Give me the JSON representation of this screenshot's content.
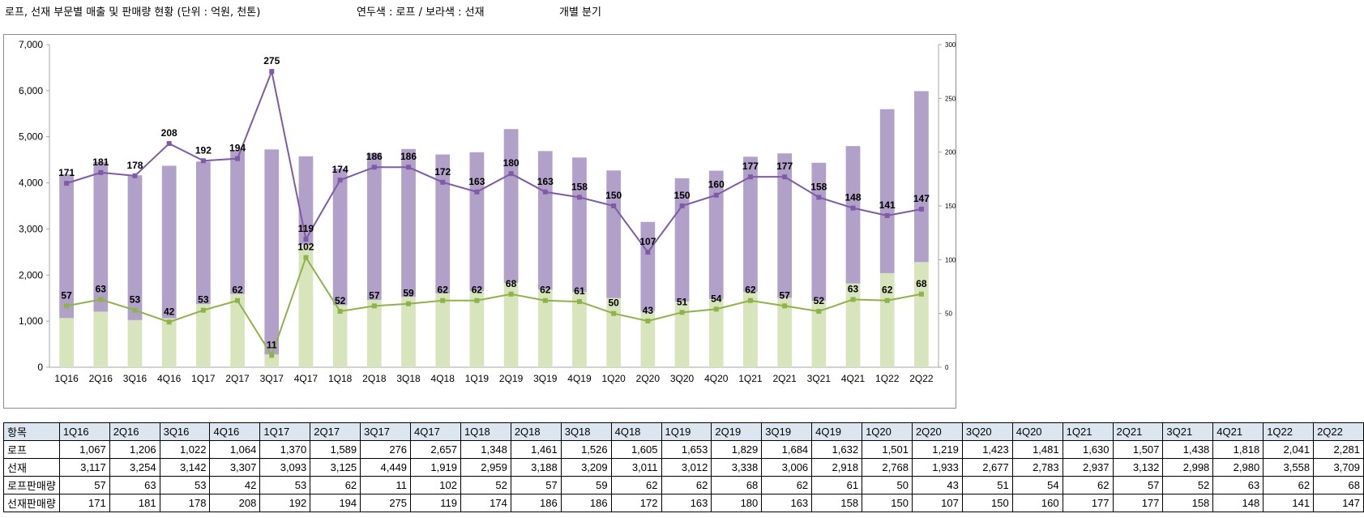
{
  "header": {
    "title": "로프, 선재 부문별 매출 및 판매량 현황 (단위 : 억원, 천톤)",
    "legend_note": "연두색 : 로프 / 보라색 : 선재",
    "period_note": "개별 분기"
  },
  "colors": {
    "rope_bar": "#d8e4bc",
    "wire_bar": "#b1a0c7",
    "rope_line": "#8db34a",
    "wire_line": "#7f5aa6"
  },
  "chart_data": {
    "type": "bar",
    "stacked": true,
    "categories": [
      "1Q16",
      "2Q16",
      "3Q16",
      "4Q16",
      "1Q17",
      "2Q17",
      "3Q17",
      "4Q17",
      "1Q18",
      "2Q18",
      "3Q18",
      "4Q18",
      "1Q19",
      "2Q19",
      "3Q19",
      "4Q19",
      "1Q20",
      "2Q20",
      "3Q20",
      "4Q20",
      "1Q21",
      "2Q21",
      "3Q21",
      "4Q21",
      "1Q22",
      "2Q22"
    ],
    "y_left": {
      "min": 0,
      "max": 7000,
      "ticks": [
        "0",
        "1,000",
        "2,000",
        "3,000",
        "4,000",
        "5,000",
        "6,000",
        "7,000"
      ]
    },
    "y_right": {
      "min": 0,
      "max": 300,
      "ticks": [
        "0",
        "50",
        "100",
        "150",
        "200",
        "250",
        "300"
      ]
    },
    "grid": false,
    "series": [
      {
        "name": "로프",
        "kind": "bar",
        "axis": "left",
        "values": [
          1067,
          1206,
          1022,
          1064,
          1370,
          1589,
          276,
          2657,
          1348,
          1461,
          1526,
          1605,
          1653,
          1829,
          1684,
          1632,
          1501,
          1219,
          1423,
          1481,
          1630,
          1507,
          1438,
          1818,
          2041,
          2281
        ]
      },
      {
        "name": "선재",
        "kind": "bar",
        "axis": "left",
        "values": [
          3117,
          3254,
          3142,
          3307,
          3093,
          3125,
          4449,
          1919,
          2959,
          3188,
          3209,
          3011,
          3012,
          3338,
          3006,
          2918,
          2768,
          1933,
          2677,
          2783,
          2937,
          3132,
          2998,
          2980,
          3558,
          3709
        ]
      },
      {
        "name": "로프판매량",
        "kind": "line",
        "axis": "right",
        "values": [
          57,
          63,
          53,
          42,
          53,
          62,
          11,
          102,
          52,
          57,
          59,
          62,
          62,
          68,
          62,
          61,
          50,
          43,
          51,
          54,
          62,
          57,
          52,
          63,
          62,
          68
        ]
      },
      {
        "name": "선재판매량",
        "kind": "line",
        "axis": "right",
        "values": [
          171,
          181,
          178,
          208,
          192,
          194,
          275,
          119,
          174,
          186,
          186,
          172,
          163,
          180,
          163,
          158,
          150,
          107,
          150,
          160,
          177,
          177,
          158,
          148,
          141,
          147
        ]
      }
    ]
  },
  "table": {
    "header_label": "항목",
    "rows": [
      {
        "label": "로프",
        "cells": [
          "1,067",
          "1,206",
          "1,022",
          "1,064",
          "1,370",
          "1,589",
          "276",
          "2,657",
          "1,348",
          "1,461",
          "1,526",
          "1,605",
          "1,653",
          "1,829",
          "1,684",
          "1,632",
          "1,501",
          "1,219",
          "1,423",
          "1,481",
          "1,630",
          "1,507",
          "1,438",
          "1,818",
          "2,041",
          "2,281"
        ]
      },
      {
        "label": "선재",
        "cells": [
          "3,117",
          "3,254",
          "3,142",
          "3,307",
          "3,093",
          "3,125",
          "4,449",
          "1,919",
          "2,959",
          "3,188",
          "3,209",
          "3,011",
          "3,012",
          "3,338",
          "3,006",
          "2,918",
          "2,768",
          "1,933",
          "2,677",
          "2,783",
          "2,937",
          "3,132",
          "2,998",
          "2,980",
          "3,558",
          "3,709"
        ]
      },
      {
        "label": "로프판매량",
        "cells": [
          "57",
          "63",
          "53",
          "42",
          "53",
          "62",
          "11",
          "102",
          "52",
          "57",
          "59",
          "62",
          "62",
          "68",
          "62",
          "61",
          "50",
          "43",
          "51",
          "54",
          "62",
          "57",
          "52",
          "63",
          "62",
          "68"
        ]
      },
      {
        "label": "선재판매량",
        "cells": [
          "171",
          "181",
          "178",
          "208",
          "192",
          "194",
          "275",
          "119",
          "174",
          "186",
          "186",
          "172",
          "163",
          "180",
          "163",
          "158",
          "150",
          "107",
          "150",
          "160",
          "177",
          "177",
          "158",
          "148",
          "141",
          "147"
        ]
      }
    ]
  }
}
